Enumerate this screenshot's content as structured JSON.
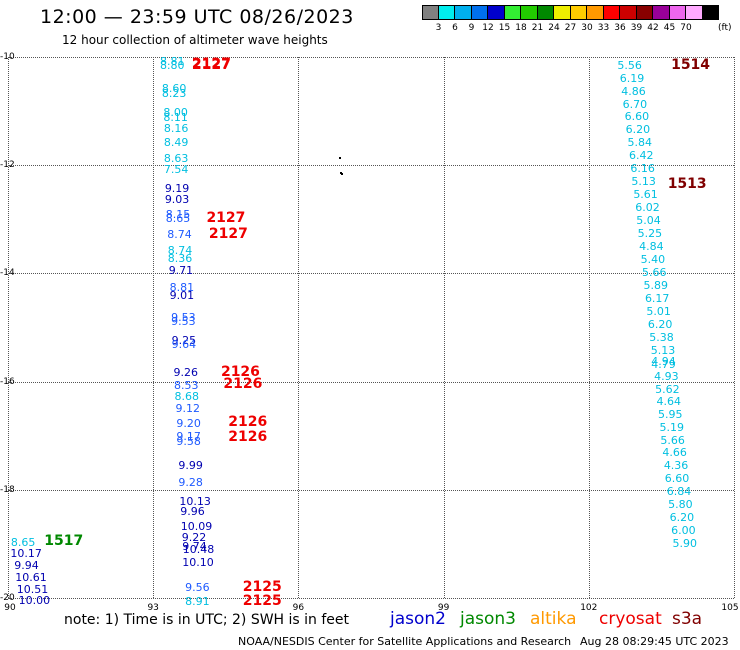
{
  "header": {
    "title": "12:00 — 23:59 UTC 08/26/2023",
    "subtitle": "12 hour collection of altimeter wave heights"
  },
  "colorbar": {
    "unit_label": "(ft)",
    "bins": [
      {
        "color": "#808080",
        "label": ""
      },
      {
        "color": "#00eeee",
        "label": "3"
      },
      {
        "color": "#00b0ee",
        "label": "6"
      },
      {
        "color": "#0070ee",
        "label": "9"
      },
      {
        "color": "#0000cc",
        "label": "12"
      },
      {
        "color": "#33ee33",
        "label": "15"
      },
      {
        "color": "#22cc00",
        "label": "18"
      },
      {
        "color": "#008800",
        "label": "21"
      },
      {
        "color": "#eeee00",
        "label": "24"
      },
      {
        "color": "#ffcc00",
        "label": "27"
      },
      {
        "color": "#ff9900",
        "label": "30"
      },
      {
        "color": "#ff0000",
        "label": "33"
      },
      {
        "color": "#cc0000",
        "label": "36"
      },
      {
        "color": "#880000",
        "label": "39"
      },
      {
        "color": "#990099",
        "label": "42"
      },
      {
        "color": "#ee66ee",
        "label": "45"
      },
      {
        "color": "#ffaaff",
        "label": "70"
      },
      {
        "color": "#000000",
        "label": ""
      }
    ]
  },
  "map": {
    "lat_labels": [
      "-10",
      "-12",
      "-14",
      "-16",
      "-18",
      "-20"
    ],
    "lon_labels": [
      "90",
      "93",
      "96",
      "99",
      "102",
      "105"
    ],
    "lat_range": [
      -20,
      -10
    ],
    "lon_range": [
      90,
      105
    ],
    "grid": true,
    "colors": {
      "cyan": "#00bfe0",
      "blue": "#1e5aff",
      "navy": "#0000b0",
      "green": "#008800",
      "red": "#ee0000",
      "maroon": "#800000"
    },
    "pass_labels": [
      {
        "text": "2127",
        "lat": -10.12,
        "lon": 93.8,
        "color": "red"
      },
      {
        "text": "2127",
        "lat": -10.15,
        "lon": 93.8,
        "color": "red"
      },
      {
        "text": "2127",
        "lat": -12.98,
        "lon": 94.1,
        "color": "red"
      },
      {
        "text": "2127",
        "lat": -13.27,
        "lon": 94.15,
        "color": "red"
      },
      {
        "text": "2126",
        "lat": -15.82,
        "lon": 94.4,
        "color": "red"
      },
      {
        "text": "2126",
        "lat": -16.05,
        "lon": 94.45,
        "color": "red"
      },
      {
        "text": "2126",
        "lat": -16.75,
        "lon": 94.55,
        "color": "red"
      },
      {
        "text": "2126",
        "lat": -17.02,
        "lon": 94.55,
        "color": "red"
      },
      {
        "text": "2125",
        "lat": -19.8,
        "lon": 94.85,
        "color": "red"
      },
      {
        "text": "2125",
        "lat": -20.05,
        "lon": 94.85,
        "color": "red"
      },
      {
        "text": "1514",
        "lat": -10.15,
        "lon": 103.7,
        "color": "maroon"
      },
      {
        "text": "1513",
        "lat": -12.35,
        "lon": 103.63,
        "color": "maroon"
      },
      {
        "text": "1517",
        "lat": -18.95,
        "lon": 90.75,
        "color": "green"
      }
    ],
    "observations": [
      {
        "v": "8.81",
        "lat": -10.07,
        "lon": 93.14,
        "c": "cyan"
      },
      {
        "v": "8.80",
        "lat": -10.15,
        "lon": 93.14,
        "c": "cyan"
      },
      {
        "v": "8.60",
        "lat": -10.58,
        "lon": 93.18,
        "c": "cyan"
      },
      {
        "v": "8.23",
        "lat": -10.66,
        "lon": 93.18,
        "c": "cyan"
      },
      {
        "v": "8.00",
        "lat": -11.02,
        "lon": 93.21,
        "c": "cyan"
      },
      {
        "v": "8.11",
        "lat": -11.1,
        "lon": 93.21,
        "c": "cyan"
      },
      {
        "v": "8.16",
        "lat": -11.32,
        "lon": 93.22,
        "c": "cyan"
      },
      {
        "v": "8.49",
        "lat": -11.58,
        "lon": 93.22,
        "c": "cyan"
      },
      {
        "v": "8.63",
        "lat": -11.86,
        "lon": 93.22,
        "c": "cyan"
      },
      {
        "v": "7.54",
        "lat": -12.07,
        "lon": 93.22,
        "c": "cyan"
      },
      {
        "v": "9.19",
        "lat": -12.42,
        "lon": 93.24,
        "c": "navy"
      },
      {
        "v": "9.03",
        "lat": -12.62,
        "lon": 93.24,
        "c": "navy"
      },
      {
        "v": "8.15",
        "lat": -12.9,
        "lon": 93.26,
        "c": "blue"
      },
      {
        "v": "8.65",
        "lat": -12.98,
        "lon": 93.26,
        "c": "blue"
      },
      {
        "v": "8.74",
        "lat": -13.27,
        "lon": 93.29,
        "c": "blue"
      },
      {
        "v": "8.74",
        "lat": -13.56,
        "lon": 93.3,
        "c": "cyan"
      },
      {
        "v": "8.36",
        "lat": -13.72,
        "lon": 93.3,
        "c": "cyan"
      },
      {
        "v": "9.71",
        "lat": -13.93,
        "lon": 93.32,
        "c": "navy"
      },
      {
        "v": "8.81",
        "lat": -14.25,
        "lon": 93.34,
        "c": "blue"
      },
      {
        "v": "9.01",
        "lat": -14.4,
        "lon": 93.34,
        "c": "navy"
      },
      {
        "v": "9.53",
        "lat": -14.8,
        "lon": 93.37,
        "c": "blue"
      },
      {
        "v": "9.53",
        "lat": -14.88,
        "lon": 93.37,
        "c": "blue"
      },
      {
        "v": "9.25",
        "lat": -15.23,
        "lon": 93.38,
        "c": "navy"
      },
      {
        "v": "9.64",
        "lat": -15.3,
        "lon": 93.38,
        "c": "blue"
      },
      {
        "v": "9.26",
        "lat": -15.83,
        "lon": 93.42,
        "c": "navy"
      },
      {
        "v": "8.53",
        "lat": -16.06,
        "lon": 93.43,
        "c": "blue"
      },
      {
        "v": "8.68",
        "lat": -16.27,
        "lon": 93.44,
        "c": "cyan"
      },
      {
        "v": "9.12",
        "lat": -16.48,
        "lon": 93.46,
        "c": "blue"
      },
      {
        "v": "9.20",
        "lat": -16.77,
        "lon": 93.48,
        "c": "blue"
      },
      {
        "v": "9.17",
        "lat": -17.0,
        "lon": 93.48,
        "c": "blue"
      },
      {
        "v": "9.58",
        "lat": -17.1,
        "lon": 93.48,
        "c": "blue"
      },
      {
        "v": "9.99",
        "lat": -17.55,
        "lon": 93.52,
        "c": "navy"
      },
      {
        "v": "9.28",
        "lat": -17.85,
        "lon": 93.52,
        "c": "blue"
      },
      {
        "v": "10.13",
        "lat": -18.2,
        "lon": 93.54,
        "c": "navy"
      },
      {
        "v": "9.96",
        "lat": -18.4,
        "lon": 93.56,
        "c": "navy"
      },
      {
        "v": "10.09",
        "lat": -18.67,
        "lon": 93.57,
        "c": "navy"
      },
      {
        "v": "9.22",
        "lat": -18.87,
        "lon": 93.59,
        "c": "navy"
      },
      {
        "v": "9.74",
        "lat": -19.04,
        "lon": 93.6,
        "c": "navy"
      },
      {
        "v": "10.48",
        "lat": -19.09,
        "lon": 93.61,
        "c": "navy"
      },
      {
        "v": "10.10",
        "lat": -19.33,
        "lon": 93.6,
        "c": "navy"
      },
      {
        "v": "9.56",
        "lat": -19.8,
        "lon": 93.66,
        "c": "blue"
      },
      {
        "v": "8.91",
        "lat": -20.05,
        "lon": 93.66,
        "c": "cyan"
      },
      {
        "v": "5.56",
        "lat": -10.15,
        "lon": 102.59,
        "c": "cyan"
      },
      {
        "v": "6.19",
        "lat": -10.38,
        "lon": 102.64,
        "c": "cyan"
      },
      {
        "v": "4.86",
        "lat": -10.63,
        "lon": 102.67,
        "c": "cyan"
      },
      {
        "v": "6.70",
        "lat": -10.86,
        "lon": 102.7,
        "c": "cyan"
      },
      {
        "v": "6.60",
        "lat": -11.09,
        "lon": 102.74,
        "c": "cyan"
      },
      {
        "v": "6.20",
        "lat": -11.34,
        "lon": 102.76,
        "c": "cyan"
      },
      {
        "v": "5.84",
        "lat": -11.57,
        "lon": 102.8,
        "c": "cyan"
      },
      {
        "v": "6.42",
        "lat": -11.82,
        "lon": 102.83,
        "c": "cyan"
      },
      {
        "v": "6.16",
        "lat": -12.05,
        "lon": 102.86,
        "c": "cyan"
      },
      {
        "v": "5.13",
        "lat": -12.3,
        "lon": 102.88,
        "c": "cyan"
      },
      {
        "v": "5.61",
        "lat": -12.54,
        "lon": 102.92,
        "c": "cyan"
      },
      {
        "v": "6.02",
        "lat": -12.78,
        "lon": 102.96,
        "c": "cyan"
      },
      {
        "v": "5.04",
        "lat": -13.02,
        "lon": 102.98,
        "c": "cyan"
      },
      {
        "v": "5.25",
        "lat": -13.26,
        "lon": 103.01,
        "c": "cyan"
      },
      {
        "v": "4.84",
        "lat": -13.5,
        "lon": 103.04,
        "c": "cyan"
      },
      {
        "v": "5.40",
        "lat": -13.74,
        "lon": 103.07,
        "c": "cyan"
      },
      {
        "v": "5.66",
        "lat": -13.98,
        "lon": 103.1,
        "c": "cyan"
      },
      {
        "v": "5.89",
        "lat": -14.22,
        "lon": 103.13,
        "c": "cyan"
      },
      {
        "v": "6.17",
        "lat": -14.45,
        "lon": 103.16,
        "c": "cyan"
      },
      {
        "v": "5.01",
        "lat": -14.7,
        "lon": 103.19,
        "c": "cyan"
      },
      {
        "v": "6.20",
        "lat": -14.93,
        "lon": 103.22,
        "c": "cyan"
      },
      {
        "v": "5.38",
        "lat": -15.18,
        "lon": 103.25,
        "c": "cyan"
      },
      {
        "v": "5.13",
        "lat": -15.42,
        "lon": 103.28,
        "c": "cyan"
      },
      {
        "v": "4.94",
        "lat": -15.62,
        "lon": 103.29,
        "c": "cyan"
      },
      {
        "v": "4.79",
        "lat": -15.68,
        "lon": 103.29,
        "c": "cyan"
      },
      {
        "v": "4.93",
        "lat": -15.89,
        "lon": 103.35,
        "c": "cyan"
      },
      {
        "v": "5.62",
        "lat": -16.13,
        "lon": 103.37,
        "c": "cyan"
      },
      {
        "v": "4.64",
        "lat": -16.36,
        "lon": 103.4,
        "c": "cyan"
      },
      {
        "v": "5.95",
        "lat": -16.6,
        "lon": 103.43,
        "c": "cyan"
      },
      {
        "v": "5.19",
        "lat": -16.84,
        "lon": 103.46,
        "c": "cyan"
      },
      {
        "v": "5.66",
        "lat": -17.08,
        "lon": 103.48,
        "c": "cyan"
      },
      {
        "v": "4.66",
        "lat": -17.31,
        "lon": 103.52,
        "c": "cyan"
      },
      {
        "v": "4.36",
        "lat": -17.55,
        "lon": 103.55,
        "c": "cyan"
      },
      {
        "v": "6.60",
        "lat": -17.79,
        "lon": 103.57,
        "c": "cyan"
      },
      {
        "v": "6.84",
        "lat": -18.03,
        "lon": 103.61,
        "c": "cyan"
      },
      {
        "v": "5.80",
        "lat": -18.27,
        "lon": 103.64,
        "c": "cyan"
      },
      {
        "v": "6.20",
        "lat": -18.5,
        "lon": 103.67,
        "c": "cyan"
      },
      {
        "v": "6.00",
        "lat": -18.74,
        "lon": 103.7,
        "c": "cyan"
      },
      {
        "v": "5.90",
        "lat": -18.98,
        "lon": 103.73,
        "c": "cyan"
      },
      {
        "v": "8.65",
        "lat": -18.96,
        "lon": 90.06,
        "c": "cyan"
      },
      {
        "v": "10.17",
        "lat": -19.17,
        "lon": 90.05,
        "c": "navy"
      },
      {
        "v": "9.94",
        "lat": -19.39,
        "lon": 90.13,
        "c": "navy"
      },
      {
        "v": "10.61",
        "lat": -19.61,
        "lon": 90.15,
        "c": "navy"
      },
      {
        "v": "10.51",
        "lat": -19.83,
        "lon": 90.18,
        "c": "navy"
      },
      {
        "v": "10.00",
        "lat": -20.04,
        "lon": 90.22,
        "c": "navy"
      }
    ],
    "land_dots": [
      {
        "lat": -11.85,
        "lon": 96.84
      },
      {
        "lat": -12.12,
        "lon": 96.86
      },
      {
        "lat": -12.15,
        "lon": 96.89
      }
    ]
  },
  "footer": {
    "note": "note: 1) Time is in UTC; 2) SWH is in feet",
    "legend": [
      {
        "label": "jason2",
        "color": "#0000cc"
      },
      {
        "label": "jason3",
        "color": "#008800"
      },
      {
        "label": "altika",
        "color": "#ff9900"
      },
      {
        "label": "cryosat",
        "color": "#ee0000"
      },
      {
        "label": "s3a",
        "color": "#800000"
      }
    ],
    "credit": "NOAA/NESDIS Center for Satellite Applications and Research",
    "timestamp": "Aug 28 08:29:45 UTC 2023"
  }
}
